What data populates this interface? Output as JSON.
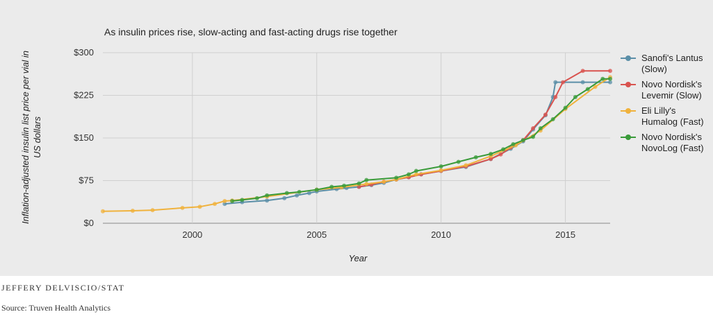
{
  "chart_data": {
    "type": "line",
    "title": "As insulin prices rise, slow-acting and fast-acting drugs rise together",
    "xlabel": "Year",
    "ylabel": "Inflation-adjusted insulin list price per vial in US dollars",
    "xlim": [
      1996.4,
      2016.8
    ],
    "ylim": [
      0,
      300
    ],
    "x_ticks": [
      2000,
      2005,
      2010,
      2015
    ],
    "x_tick_labels": [
      "2000",
      "2005",
      "2010",
      "2015"
    ],
    "y_ticks": [
      0,
      75,
      150,
      225,
      300
    ],
    "y_tick_labels": [
      "$0",
      "$75",
      "$150",
      "$225",
      "$300"
    ],
    "grid": true,
    "legend_position": "right",
    "series": [
      {
        "name": "Sanofi's Lantus (Slow)",
        "color": "#5b8fa8",
        "points": [
          [
            2001.3,
            34
          ],
          [
            2002.0,
            37
          ],
          [
            2003.0,
            40
          ],
          [
            2003.7,
            44
          ],
          [
            2004.2,
            49
          ],
          [
            2004.7,
            53
          ],
          [
            2005.0,
            56
          ],
          [
            2005.8,
            60
          ],
          [
            2006.2,
            62
          ],
          [
            2006.7,
            64
          ],
          [
            2007.2,
            67
          ],
          [
            2007.7,
            71
          ],
          [
            2008.2,
            77
          ],
          [
            2008.7,
            81
          ],
          [
            2009.2,
            86
          ],
          [
            2010.0,
            92
          ],
          [
            2011.0,
            99
          ],
          [
            2012.0,
            113
          ],
          [
            2012.8,
            131
          ],
          [
            2013.3,
            144
          ],
          [
            2013.7,
            165
          ],
          [
            2014.2,
            190
          ],
          [
            2014.5,
            222
          ],
          [
            2014.6,
            248
          ],
          [
            2015.7,
            248
          ],
          [
            2016.8,
            248
          ]
        ]
      },
      {
        "name": "Novo Nordisk's Levemir (Slow)",
        "color": "#d9534f",
        "points": [
          [
            2006.7,
            64
          ],
          [
            2007.2,
            68
          ],
          [
            2007.7,
            73
          ],
          [
            2008.2,
            77
          ],
          [
            2008.7,
            81
          ],
          [
            2009.2,
            86
          ],
          [
            2010.0,
            92
          ],
          [
            2011.0,
            100
          ],
          [
            2012.0,
            113
          ],
          [
            2012.4,
            121
          ],
          [
            2012.8,
            133
          ],
          [
            2013.3,
            146
          ],
          [
            2013.7,
            167
          ],
          [
            2014.2,
            191
          ],
          [
            2014.6,
            222
          ],
          [
            2014.9,
            248
          ],
          [
            2015.7,
            268
          ],
          [
            2016.8,
            268
          ]
        ]
      },
      {
        "name": "Eli Lilly's Humalog (Fast)",
        "color": "#f0b23c",
        "points": [
          [
            1996.4,
            21
          ],
          [
            1997.6,
            22
          ],
          [
            1998.4,
            23
          ],
          [
            1999.6,
            27
          ],
          [
            2000.3,
            29
          ],
          [
            2000.9,
            34
          ],
          [
            2001.3,
            39
          ],
          [
            2001.6,
            40
          ],
          [
            2003.0,
            47
          ],
          [
            2005.0,
            59
          ],
          [
            2006.0,
            63
          ],
          [
            2007.0,
            69
          ],
          [
            2007.7,
            73
          ],
          [
            2008.2,
            77
          ],
          [
            2009.0,
            86
          ],
          [
            2010.0,
            93
          ],
          [
            2011.0,
            102
          ],
          [
            2012.0,
            118
          ],
          [
            2013.0,
            137
          ],
          [
            2014.0,
            163
          ],
          [
            2015.0,
            201
          ],
          [
            2016.2,
            240
          ],
          [
            2016.8,
            257
          ]
        ]
      },
      {
        "name": "Novo Nordisk's NovoLog (Fast)",
        "color": "#3a9b3a",
        "points": [
          [
            2001.6,
            39
          ],
          [
            2002.0,
            41
          ],
          [
            2002.6,
            44
          ],
          [
            2003.0,
            49
          ],
          [
            2003.8,
            53
          ],
          [
            2004.3,
            55
          ],
          [
            2005.0,
            59
          ],
          [
            2005.6,
            64
          ],
          [
            2006.1,
            66
          ],
          [
            2006.7,
            70
          ],
          [
            2007.0,
            76
          ],
          [
            2008.2,
            80
          ],
          [
            2008.7,
            86
          ],
          [
            2009.0,
            92
          ],
          [
            2010.0,
            100
          ],
          [
            2010.7,
            108
          ],
          [
            2011.4,
            116
          ],
          [
            2012.0,
            122
          ],
          [
            2012.5,
            130
          ],
          [
            2012.9,
            139
          ],
          [
            2013.3,
            146
          ],
          [
            2013.7,
            152
          ],
          [
            2014.0,
            167
          ],
          [
            2014.5,
            183
          ],
          [
            2015.0,
            203
          ],
          [
            2015.4,
            222
          ],
          [
            2015.9,
            236
          ],
          [
            2016.5,
            254
          ],
          [
            2016.8,
            254
          ]
        ]
      }
    ]
  },
  "footer": {
    "credit": "JEFFERY DELVISCIO/STAT",
    "source": "Source: Truven Health Analytics"
  }
}
